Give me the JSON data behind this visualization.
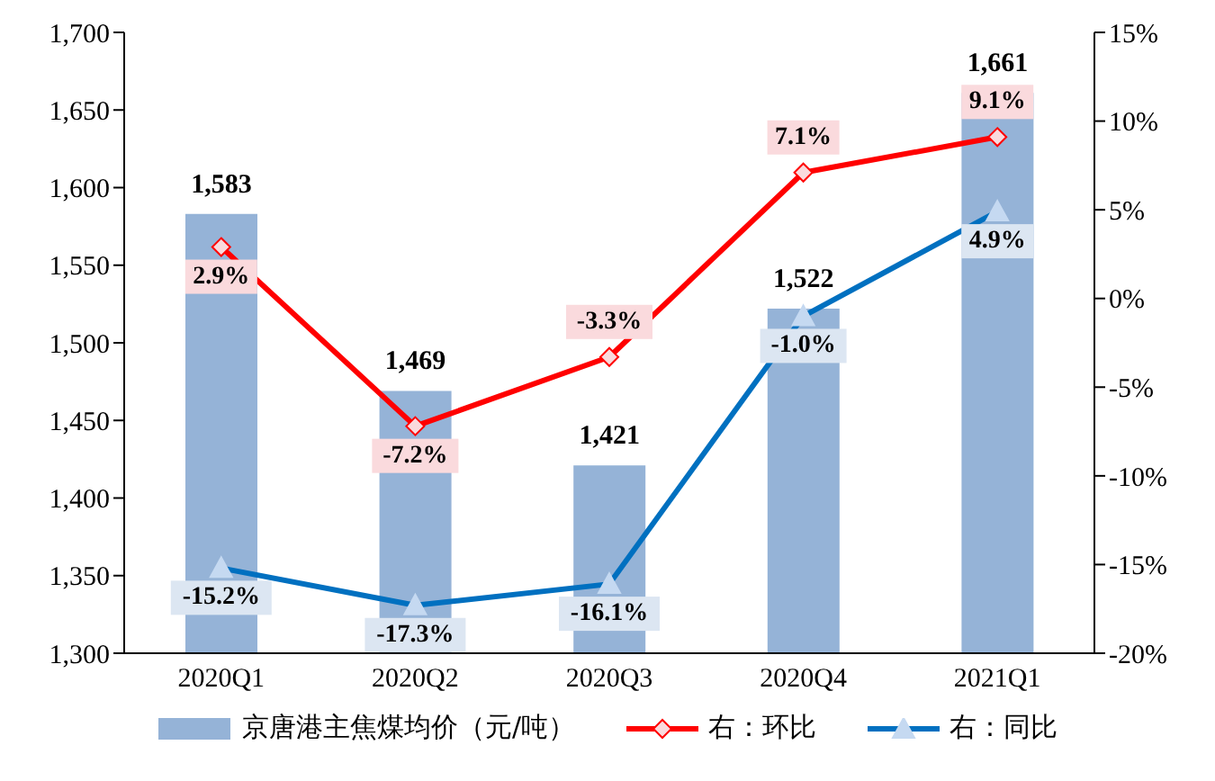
{
  "chart_data": {
    "type": "bar",
    "categories": [
      "2020Q1",
      "2020Q2",
      "2020Q3",
      "2020Q4",
      "2021Q1"
    ],
    "series": [
      {
        "name": "京唐港主焦煤均价（元/吨）",
        "color": "#95b3d7",
        "values": [
          1583,
          1469,
          1421,
          1522,
          1661
        ],
        "value_labels": [
          "1,583",
          "1,469",
          "1,421",
          "1,522",
          "1,661"
        ]
      },
      {
        "name": "右：环比",
        "type": "line",
        "axis": "y2",
        "color": "#ff0000",
        "marker": "diamond",
        "values": [
          2.9,
          -7.2,
          -3.3,
          7.1,
          9.1
        ],
        "value_labels": [
          "2.9%",
          "-7.2%",
          "-3.3%",
          "7.1%",
          "9.1%"
        ]
      },
      {
        "name": "右：同比",
        "type": "line",
        "axis": "y2",
        "color": "#0070c0",
        "marker": "triangle",
        "values": [
          -15.2,
          -17.3,
          -16.1,
          -1.0,
          4.9
        ],
        "value_labels": [
          "-15.2%",
          "-17.3%",
          "-16.1%",
          "-1.0%",
          "4.9%"
        ]
      }
    ],
    "ylim": [
      1300,
      1700
    ],
    "yticks": [
      {
        "value": 1300,
        "label": "1,300"
      },
      {
        "value": 1350,
        "label": "1,350"
      },
      {
        "value": 1400,
        "label": "1,400"
      },
      {
        "value": 1450,
        "label": "1,450"
      },
      {
        "value": 1500,
        "label": "1,500"
      },
      {
        "value": 1550,
        "label": "1,550"
      },
      {
        "value": 1600,
        "label": "1,600"
      },
      {
        "value": 1650,
        "label": "1,650"
      },
      {
        "value": 1700,
        "label": "1,700"
      }
    ],
    "y2lim": [
      -20,
      15
    ],
    "y2ticks": [
      {
        "value": -20,
        "label": "-20%"
      },
      {
        "value": -15,
        "label": "-15%"
      },
      {
        "value": -10,
        "label": "-10%"
      },
      {
        "value": -5,
        "label": "-5%"
      },
      {
        "value": 0,
        "label": "0%"
      },
      {
        "value": 5,
        "label": "5%"
      },
      {
        "value": 10,
        "label": "10%"
      },
      {
        "value": 15,
        "label": "15%"
      }
    ],
    "legend": "bottom",
    "grid": false
  }
}
